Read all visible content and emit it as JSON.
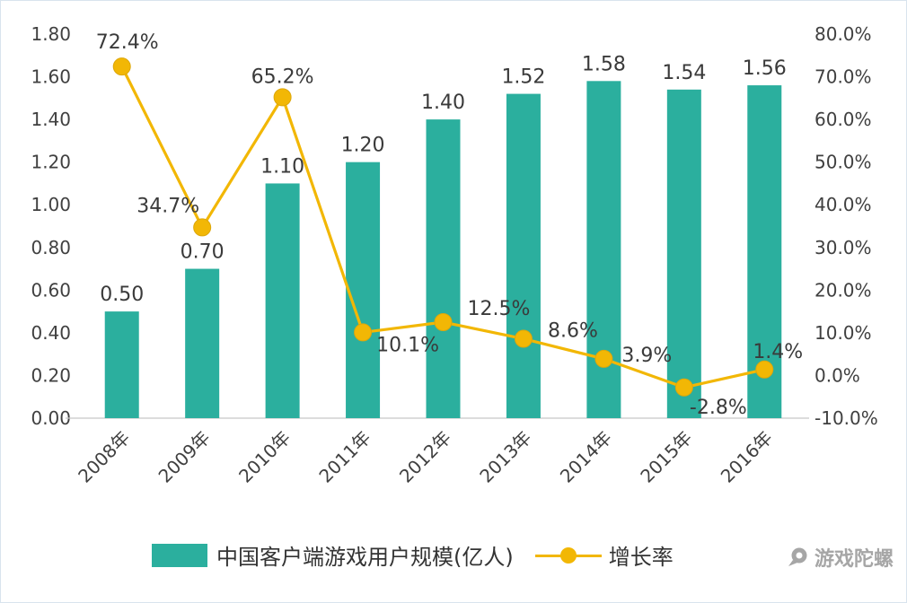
{
  "chart_data": {
    "type": "bar+line",
    "categories": [
      "2008年",
      "2009年",
      "2010年",
      "2011年",
      "2012年",
      "2013年",
      "2014年",
      "2015年",
      "2016年"
    ],
    "series": [
      {
        "name": "中国客户端游戏用户规模(亿人)",
        "type": "bar",
        "axis": "left",
        "values": [
          0.5,
          0.7,
          1.1,
          1.2,
          1.4,
          1.52,
          1.58,
          1.54,
          1.56
        ],
        "labels": [
          "0.50",
          "0.70",
          "1.10",
          "1.20",
          "1.40",
          "1.52",
          "1.58",
          "1.54",
          "1.56"
        ],
        "color": "#2BAF9E"
      },
      {
        "name": "增长率",
        "type": "line",
        "axis": "right",
        "values": [
          72.4,
          34.7,
          65.2,
          10.1,
          12.5,
          8.6,
          3.9,
          -2.8,
          1.4
        ],
        "labels": [
          "72.4%",
          "34.7%",
          "65.2%",
          "10.1%",
          "12.5%",
          "8.6%",
          "3.9%",
          "-2.8%",
          "1.4%"
        ],
        "color": "#F2B705",
        "label_offsets": [
          [
            6,
            -20
          ],
          [
            -38,
            -17
          ],
          [
            0,
            -16
          ],
          [
            50,
            21
          ],
          [
            62,
            -8
          ],
          [
            55,
            -2
          ],
          [
            48,
            3
          ],
          [
            38,
            29
          ],
          [
            15,
            -13
          ]
        ]
      }
    ],
    "left_axis": {
      "min": 0,
      "max": 1.8,
      "ticks": [
        {
          "v": 0.0,
          "label": "0.00"
        },
        {
          "v": 0.2,
          "label": "0.20"
        },
        {
          "v": 0.4,
          "label": "0.40"
        },
        {
          "v": 0.6,
          "label": "0.60"
        },
        {
          "v": 0.8,
          "label": "0.80"
        },
        {
          "v": 1.0,
          "label": "1.00"
        },
        {
          "v": 1.2,
          "label": "1.20"
        },
        {
          "v": 1.4,
          "label": "1.40"
        },
        {
          "v": 1.6,
          "label": "1.60"
        },
        {
          "v": 1.8,
          "label": "1.80"
        }
      ]
    },
    "right_axis": {
      "min": -10,
      "max": 80,
      "ticks": [
        {
          "v": -10,
          "label": "-10.0%"
        },
        {
          "v": 0,
          "label": "0.0%"
        },
        {
          "v": 10,
          "label": "10.0%"
        },
        {
          "v": 20,
          "label": "20.0%"
        },
        {
          "v": 30,
          "label": "30.0%"
        },
        {
          "v": 40,
          "label": "40.0%"
        },
        {
          "v": 50,
          "label": "50.0%"
        },
        {
          "v": 60,
          "label": "60.0%"
        },
        {
          "v": 70,
          "label": "70.0%"
        },
        {
          "v": 80,
          "label": "80.0%"
        }
      ]
    },
    "title": "",
    "grid": false,
    "legend_position": "bottom",
    "text_color": "#3a3a3a",
    "tick_color": "#404040",
    "axis_line_color": "#c6c6c6"
  },
  "watermark": {
    "text": "游戏陀螺"
  }
}
